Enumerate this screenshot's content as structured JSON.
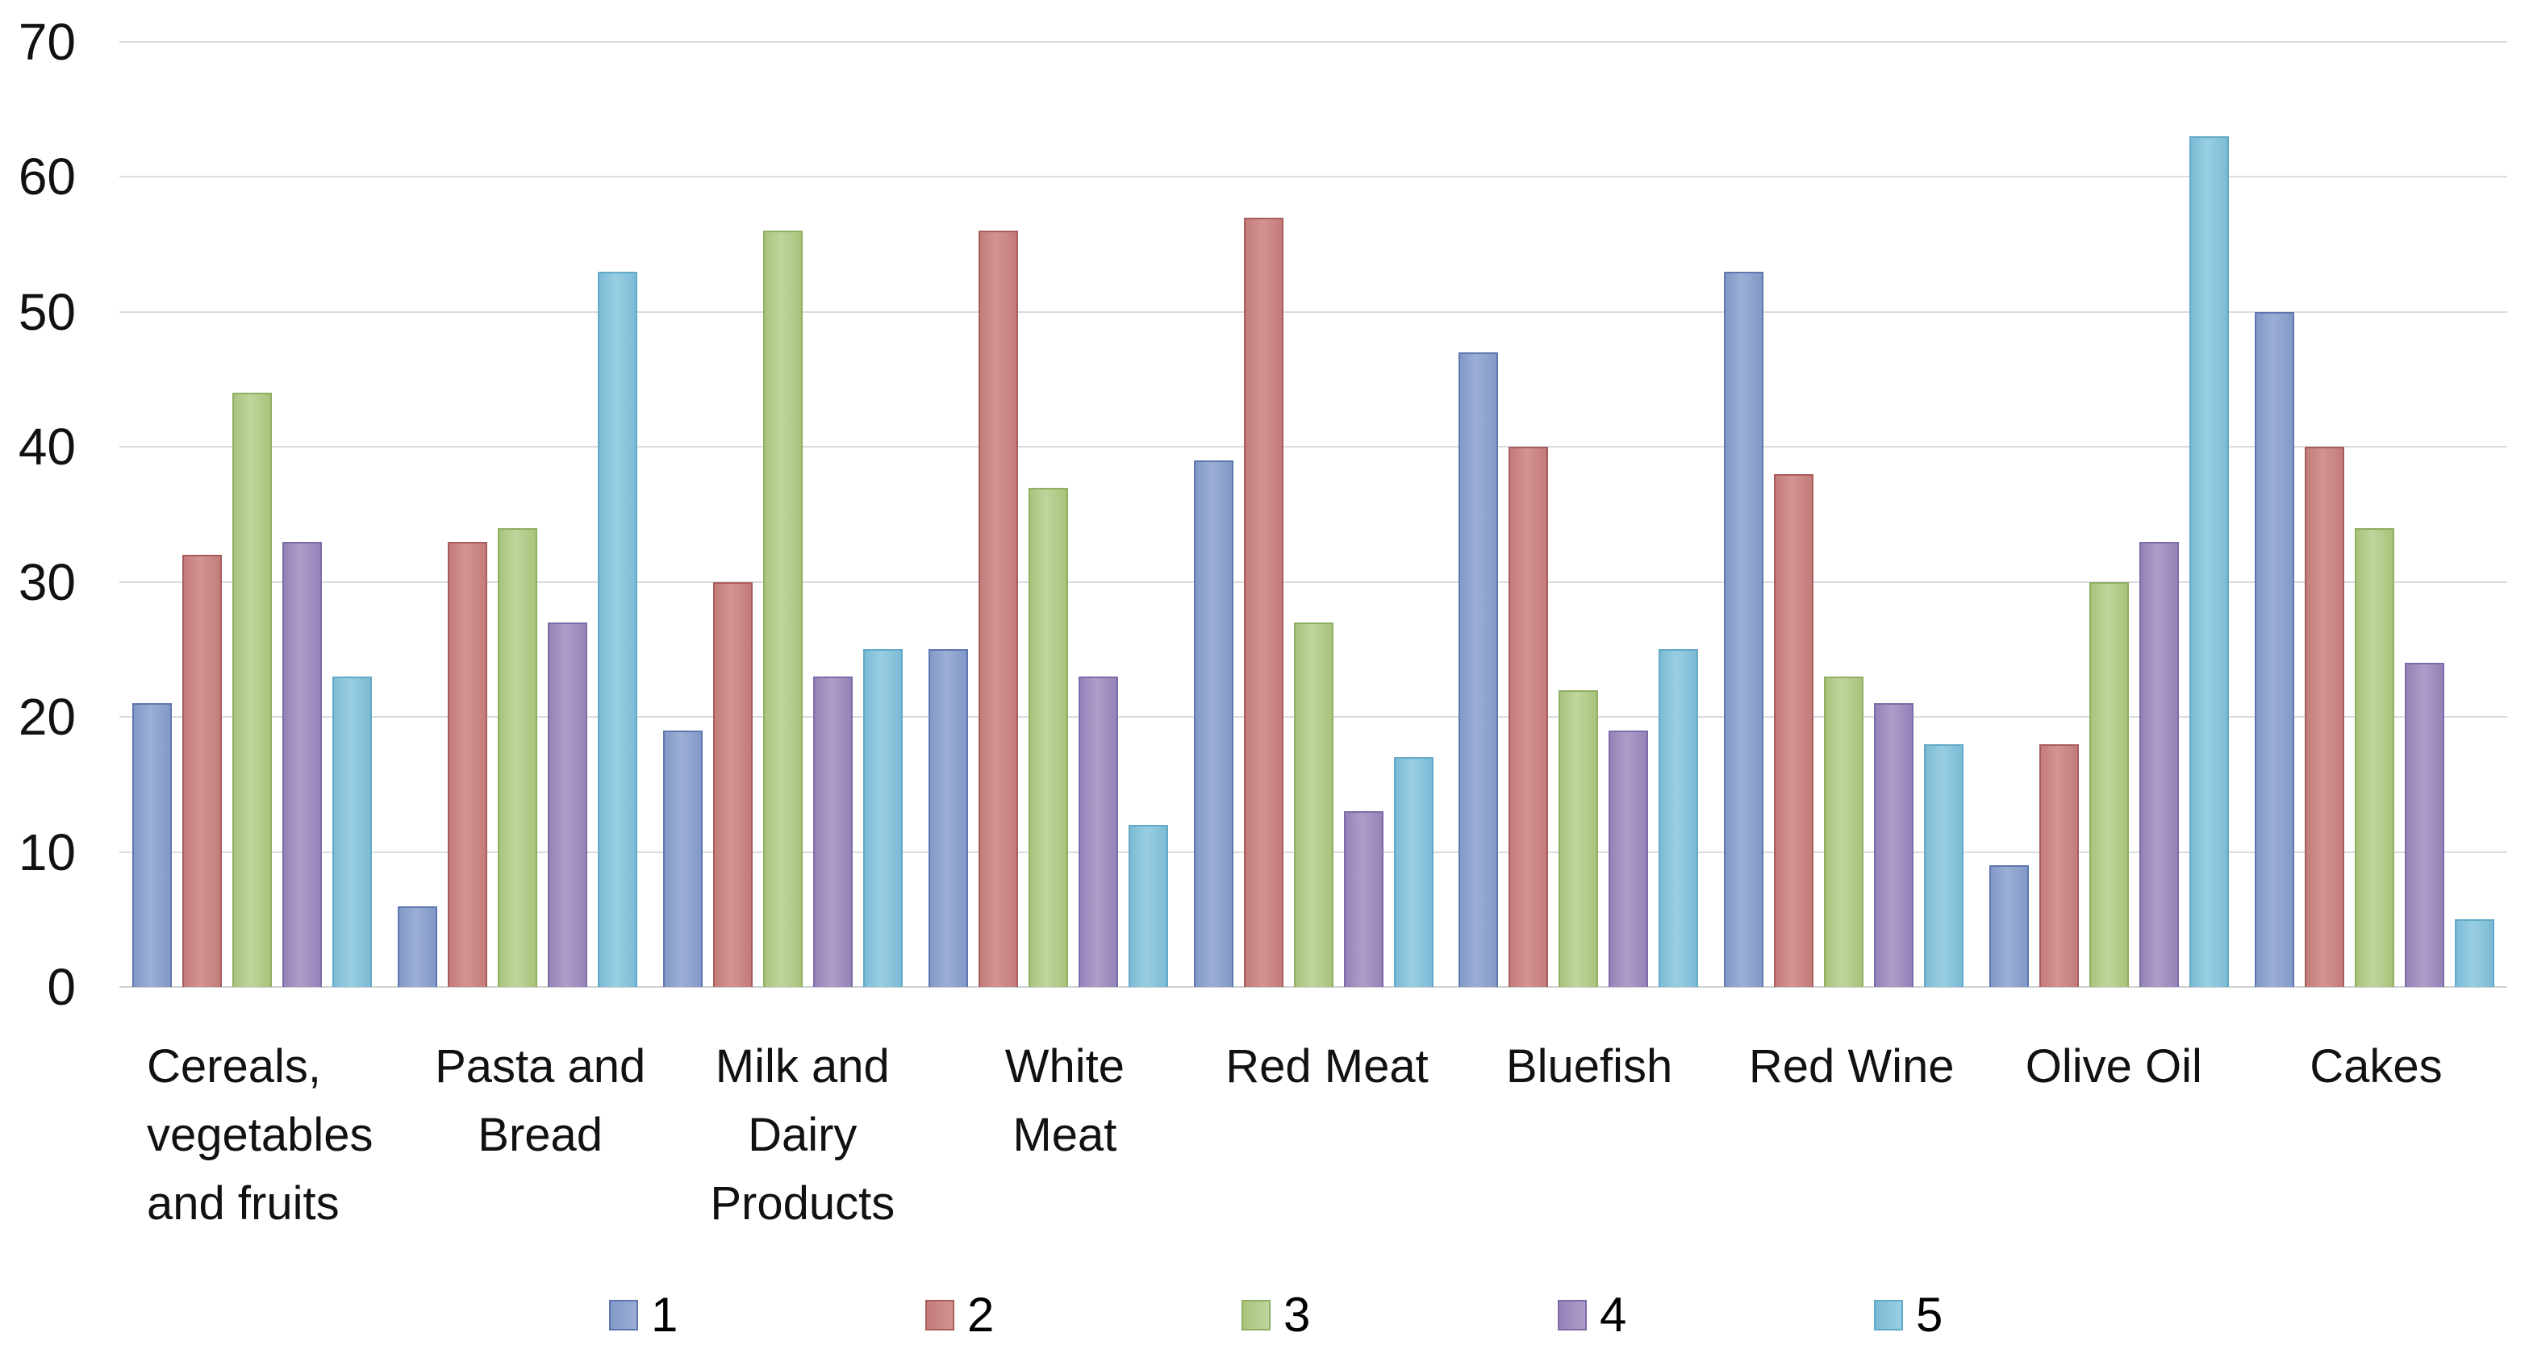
{
  "chart_data": {
    "type": "bar",
    "title": "",
    "xlabel": "",
    "ylabel": "",
    "categories": [
      "Cereals, vegetables and fruits",
      "Pasta and Bread",
      "Milk and Dairy Products",
      "White Meat",
      "Red Meat",
      "Bluefish",
      "Red Wine",
      "Olive Oil",
      "Cakes"
    ],
    "category_display_lines": [
      "Cereals,\nvegetables\nand fruits",
      "Pasta and\nBread",
      "Milk and\nDairy\nProducts",
      "White\nMeat",
      "Red Meat",
      "Bluefish",
      "Red Wine",
      "Olive Oil",
      "Cakes"
    ],
    "series": [
      {
        "name": "1",
        "values": [
          21,
          6,
          19,
          25,
          39,
          47,
          53,
          9,
          50
        ],
        "fill_light": "#9BAED4",
        "fill_dark": "#8299C8",
        "border": "#5E77AE"
      },
      {
        "name": "2",
        "values": [
          32,
          33,
          30,
          56,
          57,
          40,
          38,
          18,
          40
        ],
        "fill_light": "#D49292",
        "fill_dark": "#C37C7C",
        "border": "#A95C5C"
      },
      {
        "name": "3",
        "values": [
          44,
          34,
          56,
          37,
          27,
          22,
          23,
          30,
          34
        ],
        "fill_light": "#BED59C",
        "fill_dark": "#A9C37C",
        "border": "#8FAF62"
      },
      {
        "name": "4",
        "values": [
          33,
          27,
          23,
          23,
          13,
          19,
          21,
          33,
          24
        ],
        "fill_light": "#AC9EC9",
        "fill_dark": "#9583B8",
        "border": "#7D6BA8"
      },
      {
        "name": "5",
        "values": [
          23,
          53,
          25,
          12,
          17,
          25,
          18,
          63,
          5
        ],
        "fill_light": "#98CEE2",
        "fill_dark": "#7CBBD5",
        "border": "#61A9C7"
      }
    ],
    "ylim": [
      0,
      70
    ],
    "yticks": [
      "0",
      "10",
      "20",
      "30",
      "40",
      "50",
      "60",
      "70"
    ],
    "grid": true,
    "legend_position": "bottom",
    "legend_labels": [
      "1",
      "2",
      "3",
      "4",
      "5"
    ]
  },
  "colors": {
    "background": "#FFFFFF",
    "gridline": "#D9DBDD",
    "axis_text": "#111111"
  }
}
